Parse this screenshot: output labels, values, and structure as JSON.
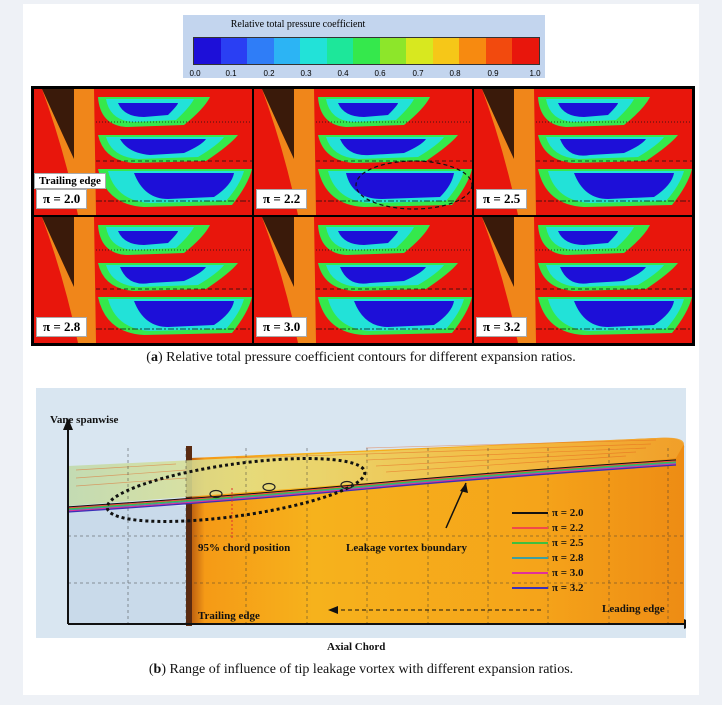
{
  "colorbar": {
    "title": "Relative total pressure coefficient",
    "ticks": [
      "0.0",
      "0.1",
      "0.2",
      "0.3",
      "0.4",
      "0.6",
      "0.7",
      "0.8",
      "0.9",
      "1.0"
    ],
    "colors": [
      "#1d0fd8",
      "#2a3ff3",
      "#2f7df7",
      "#2cb4f4",
      "#22e2d8",
      "#1de79a",
      "#35e84c",
      "#8de62a",
      "#d8e81f",
      "#f6c718",
      "#f78a10",
      "#f24a0e",
      "#e8160c"
    ]
  },
  "panel_a": {
    "trailing_edge": "Trailing edge",
    "panels": [
      {
        "label": "π = 2.0"
      },
      {
        "label": "π = 2.2"
      },
      {
        "label": "π = 2.5"
      },
      {
        "label": "π = 2.8"
      },
      {
        "label": "π = 3.0"
      },
      {
        "label": "π = 3.2"
      }
    ],
    "caption_prefix": "(",
    "caption_letter": "a",
    "caption_text": ") Relative total pressure coefficient contours for different expansion ratios."
  },
  "panel_b": {
    "y_axis_label": "Vane spanwise",
    "x_axis_label": "Axial Chord",
    "chord_position": "95% chord position",
    "vortex_boundary": "Leakage vortex boundary",
    "trailing_edge": "Trailing edge",
    "leading_edge": "Leading edge",
    "legend": [
      {
        "label": "π = 2.0",
        "color": "#111111"
      },
      {
        "label": "π = 2.2",
        "color": "#f04a4a"
      },
      {
        "label": "π = 2.5",
        "color": "#3fbf3f"
      },
      {
        "label": "π = 2.8",
        "color": "#3d9fa0"
      },
      {
        "label": "π = 3.0",
        "color": "#e0309a"
      },
      {
        "label": "π = 3.2",
        "color": "#3b2fb8"
      }
    ],
    "caption_prefix": "(",
    "caption_letter": "b",
    "caption_text": ") Range of influence of tip leakage vortex with different expansion ratios."
  }
}
